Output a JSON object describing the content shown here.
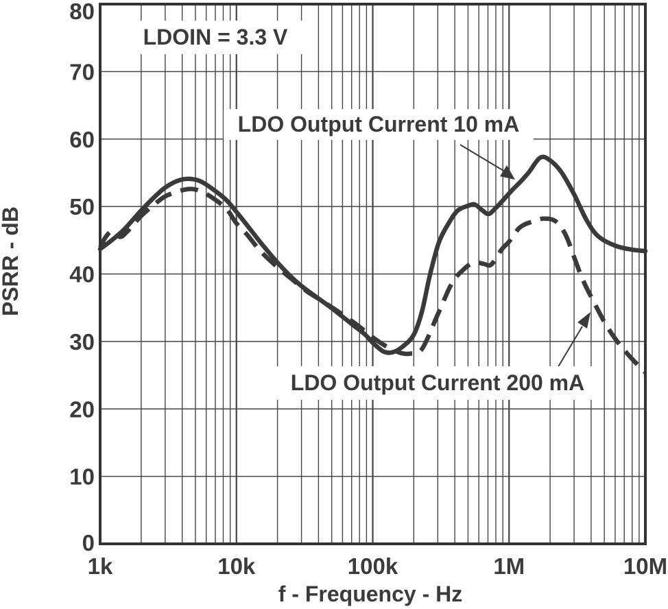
{
  "figure": {
    "background": "#ffffff"
  },
  "colors": {
    "ink": "#3a3a3a",
    "grid": "#444444",
    "border": "#333333",
    "text": "#3b3b3b"
  },
  "chart_data": {
    "type": "line",
    "title": "",
    "xlabel": "f - Frequency - Hz",
    "ylabel": "PSRR - dB",
    "x_scale": "log",
    "xlim": [
      1000,
      10000000
    ],
    "ylim": [
      0,
      80
    ],
    "grid": "full log-x grid with minor decade lines; horizontal major lines every 10 dB",
    "legend_position": "inline annotations with arrows",
    "x_ticks": [
      {
        "value": 1000,
        "label": "1k"
      },
      {
        "value": 10000,
        "label": "10k"
      },
      {
        "value": 100000,
        "label": "100k"
      },
      {
        "value": 1000000,
        "label": "1M"
      },
      {
        "value": 10000000,
        "label": "10M"
      }
    ],
    "y_ticks": [
      {
        "value": 0,
        "label": "0"
      },
      {
        "value": 10,
        "label": "10"
      },
      {
        "value": 20,
        "label": "20"
      },
      {
        "value": 30,
        "label": "30"
      },
      {
        "value": 40,
        "label": "40"
      },
      {
        "value": 50,
        "label": "50"
      },
      {
        "value": 60,
        "label": "60"
      },
      {
        "value": 70,
        "label": "70"
      },
      {
        "value": 80,
        "label": "80"
      }
    ],
    "annotations": {
      "condition": "LDOIN = 3.3 V"
    },
    "series": [
      {
        "name": "LDO Output Current 10 mA",
        "line_style": "solid",
        "points": [
          [
            1000,
            43.7
          ],
          [
            1200,
            44.9
          ],
          [
            1500,
            46.6
          ],
          [
            2000,
            49.4
          ],
          [
            2500,
            51.4
          ],
          [
            3000,
            52.8
          ],
          [
            3700,
            53.8
          ],
          [
            4500,
            54.1
          ],
          [
            5500,
            53.7
          ],
          [
            7000,
            52.3
          ],
          [
            8500,
            50.9
          ],
          [
            10000,
            49.2
          ],
          [
            12000,
            47.2
          ],
          [
            15000,
            44.7
          ],
          [
            20000,
            41.7
          ],
          [
            27000,
            39.0
          ],
          [
            35000,
            37.2
          ],
          [
            48000,
            35.2
          ],
          [
            70000,
            32.6
          ],
          [
            88000,
            31.0
          ],
          [
            100000,
            29.8
          ],
          [
            120000,
            28.5
          ],
          [
            140000,
            28.4
          ],
          [
            165000,
            29.2
          ],
          [
            200000,
            31.0
          ],
          [
            230000,
            34.5
          ],
          [
            263000,
            39.9
          ],
          [
            306000,
            44.7
          ],
          [
            360000,
            47.5
          ],
          [
            420000,
            49.4
          ],
          [
            500000,
            50.1
          ],
          [
            560000,
            50.3
          ],
          [
            640000,
            49.4
          ],
          [
            710000,
            48.9
          ],
          [
            800000,
            49.8
          ],
          [
            900000,
            50.9
          ],
          [
            1050000,
            52.4
          ],
          [
            1230000,
            53.8
          ],
          [
            1400000,
            55.1
          ],
          [
            1680000,
            57.2
          ],
          [
            1950000,
            57.0
          ],
          [
            2400000,
            55.2
          ],
          [
            3000000,
            51.8
          ],
          [
            3700000,
            48.0
          ],
          [
            4500000,
            45.6
          ],
          [
            6000000,
            44.2
          ],
          [
            8000000,
            43.6
          ],
          [
            10000000,
            43.4
          ]
        ]
      },
      {
        "name": "LDO Output Current 200 mA",
        "line_style": "dashed",
        "points": [
          [
            1000,
            43.9
          ],
          [
            1100,
            45.5
          ],
          [
            1250,
            46.5
          ],
          [
            1400,
            45.5
          ],
          [
            1600,
            46.4
          ],
          [
            2000,
            48.6
          ],
          [
            2500,
            50.3
          ],
          [
            3000,
            51.5
          ],
          [
            3800,
            52.3
          ],
          [
            4700,
            52.6
          ],
          [
            5700,
            52.1
          ],
          [
            7000,
            51.0
          ],
          [
            8500,
            49.6
          ],
          [
            10000,
            47.5
          ],
          [
            12000,
            45.8
          ],
          [
            15000,
            43.4
          ],
          [
            20000,
            41.0
          ],
          [
            26000,
            39.1
          ],
          [
            33000,
            37.4
          ],
          [
            41000,
            36.2
          ],
          [
            58000,
            34.2
          ],
          [
            75000,
            32.6
          ],
          [
            88000,
            31.5
          ],
          [
            105000,
            30.3
          ],
          [
            130000,
            29.1
          ],
          [
            160000,
            28.3
          ],
          [
            190000,
            28.2
          ],
          [
            230000,
            28.9
          ],
          [
            300000,
            34.0
          ],
          [
            380000,
            38.6
          ],
          [
            460000,
            40.6
          ],
          [
            550000,
            41.7
          ],
          [
            650000,
            41.5
          ],
          [
            740000,
            41.4
          ],
          [
            880000,
            43.6
          ],
          [
            1000000,
            44.8
          ],
          [
            1200000,
            46.9
          ],
          [
            1500000,
            47.8
          ],
          [
            1800000,
            48.2
          ],
          [
            2200000,
            47.8
          ],
          [
            2600000,
            45.8
          ],
          [
            3000000,
            42.5
          ],
          [
            3500000,
            39.0
          ],
          [
            4200000,
            35.8
          ],
          [
            5200000,
            32.3
          ],
          [
            6500000,
            29.5
          ],
          [
            8000000,
            27.4
          ],
          [
            10000000,
            25.4
          ]
        ]
      }
    ]
  }
}
